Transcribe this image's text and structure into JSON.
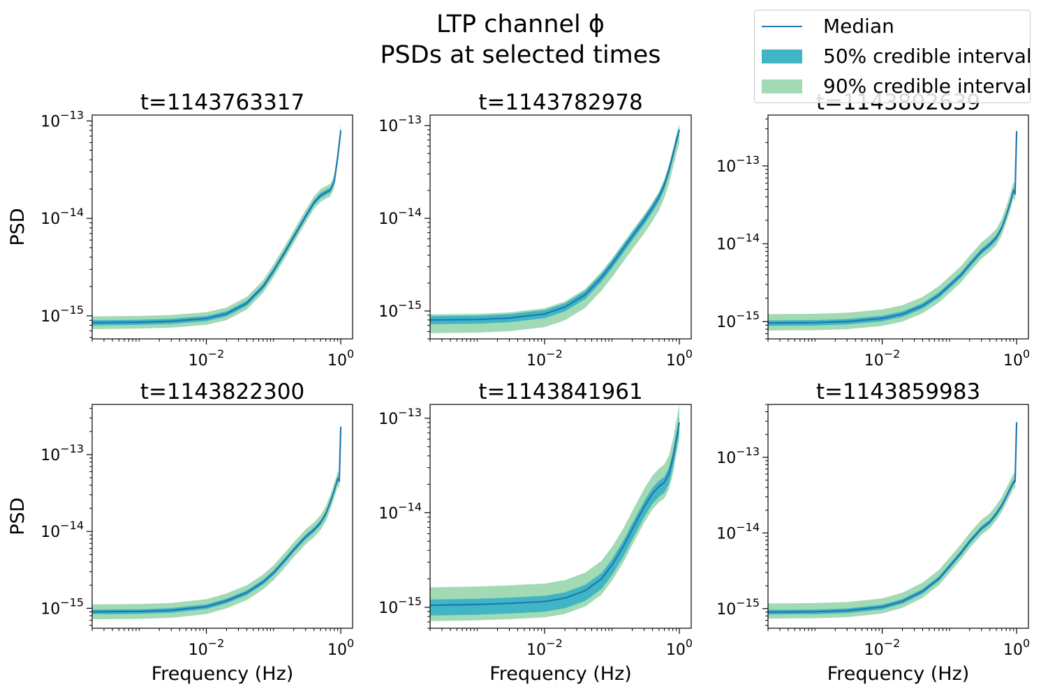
{
  "figure": {
    "title_line1": "LTP channel ϕ",
    "title_line2": "PSDs at selected times"
  },
  "legend": {
    "position": "upper-right",
    "items": [
      {
        "label": "Median",
        "kind": "line",
        "color": "#1f77b4"
      },
      {
        "label": "50% credible interval",
        "kind": "band",
        "color": "#40b5c4"
      },
      {
        "label": "90% credible interval",
        "kind": "band",
        "color": "#a1dab4"
      }
    ]
  },
  "colors": {
    "median": "#1f77b4",
    "ci50": "#40b5c4",
    "ci90": "#a1dab4",
    "axis": "#000000"
  },
  "chart_data": [
    {
      "type": "line",
      "title": "t=1143763317",
      "xlabel": "",
      "ylabel": "PSD",
      "xscale": "log",
      "yscale": "log",
      "xlim": [
        0.0002,
        1.5
      ],
      "ylim": [
        5.8e-16,
        1.15e-13
      ],
      "xticks": [
        {
          "value": 0.01,
          "label": "10^-2"
        },
        {
          "value": 1,
          "label": "10^0"
        }
      ],
      "yticks": [
        {
          "value": 1e-15,
          "label": "10^-15"
        },
        {
          "value": 1e-14,
          "label": "10^-14"
        },
        {
          "value": 1e-13,
          "label": "10^-13"
        }
      ],
      "x": [
        0.0002,
        0.001,
        0.003,
        0.01,
        0.02,
        0.04,
        0.07,
        0.1,
        0.15,
        0.2,
        0.3,
        0.4,
        0.5,
        0.6,
        0.7,
        0.8,
        0.9,
        1.0
      ],
      "series": [
        {
          "median": [
            8.5e-16,
            8.6e-16,
            8.8e-16,
            9.4e-16,
            1.05e-15,
            1.35e-15,
            2e-15,
            2.9e-15,
            4.6e-15,
            6.5e-15,
            1.05e-14,
            1.45e-14,
            1.72e-14,
            1.85e-14,
            1.95e-14,
            2.4e-14,
            4.2e-14,
            8e-14
          ],
          "ci50": [
            0.94,
            1.06
          ],
          "ci90": [
            0.86,
            1.16
          ]
        }
      ]
    },
    {
      "type": "line",
      "title": "t=1143782978",
      "xlabel": "",
      "ylabel": "",
      "xscale": "log",
      "yscale": "log",
      "xlim": [
        0.0002,
        1.5
      ],
      "ylim": [
        5e-16,
        1.3e-13
      ],
      "xticks": [
        {
          "value": 0.01,
          "label": "10^-2"
        },
        {
          "value": 1,
          "label": "10^0"
        }
      ],
      "yticks": [
        {
          "value": 1e-15,
          "label": "10^-15"
        },
        {
          "value": 1e-14,
          "label": "10^-14"
        },
        {
          "value": 1e-13,
          "label": "10^-13"
        }
      ],
      "x": [
        0.0002,
        0.001,
        0.003,
        0.01,
        0.02,
        0.04,
        0.07,
        0.1,
        0.15,
        0.2,
        0.3,
        0.4,
        0.5,
        0.6,
        0.7,
        0.8,
        0.9,
        1.0
      ],
      "series": [
        {
          "median": [
            8e-16,
            8.1e-16,
            8.4e-16,
            9.3e-16,
            1.1e-15,
            1.5e-15,
            2.3e-15,
            3.2e-15,
            4.8e-15,
            6.4e-15,
            9.5e-15,
            1.3e-14,
            1.7e-14,
            2.3e-14,
            3.3e-14,
            4.8e-14,
            6.8e-14,
            9e-14
          ],
          "ci50": [
            0.9,
            1.1
          ],
          "ci90": [
            0.72,
            1.15
          ]
        }
      ]
    },
    {
      "type": "line",
      "title": "t=1143802639",
      "xlabel": "",
      "ylabel": "",
      "xscale": "log",
      "yscale": "log",
      "xlim": [
        0.0002,
        1.5
      ],
      "ylim": [
        6e-16,
        4.5e-13
      ],
      "xticks": [
        {
          "value": 0.01,
          "label": "10^-2"
        },
        {
          "value": 1,
          "label": "10^0"
        }
      ],
      "yticks": [
        {
          "value": 1e-15,
          "label": "10^-15"
        },
        {
          "value": 1e-14,
          "label": "10^-14"
        },
        {
          "value": 1e-13,
          "label": "10^-13"
        }
      ],
      "x": [
        0.0002,
        0.001,
        0.003,
        0.01,
        0.02,
        0.04,
        0.07,
        0.1,
        0.15,
        0.2,
        0.3,
        0.4,
        0.5,
        0.6,
        0.7,
        0.8,
        0.9,
        0.95,
        1.0
      ],
      "series": [
        {
          "median": [
            9.6e-16,
            9.7e-16,
            1e-15,
            1.1e-15,
            1.25e-15,
            1.6e-15,
            2.2e-15,
            2.9e-15,
            4e-15,
            5.4e-15,
            8e-15,
            9.8e-15,
            1.2e-14,
            1.6e-14,
            2.3e-14,
            3.3e-14,
            4.8e-14,
            4.5e-14,
            2.8e-13
          ],
          "ci50": [
            0.92,
            1.08
          ],
          "ci90": [
            0.8,
            1.3
          ]
        }
      ]
    },
    {
      "type": "line",
      "title": "t=1143822300",
      "xlabel": "Frequency (Hz)",
      "ylabel": "PSD",
      "xscale": "log",
      "yscale": "log",
      "xlim": [
        0.0002,
        1.5
      ],
      "ylim": [
        5.5e-16,
        4.5e-13
      ],
      "xticks": [
        {
          "value": 0.01,
          "label": "10^-2"
        },
        {
          "value": 1,
          "label": "10^0"
        }
      ],
      "yticks": [
        {
          "value": 1e-15,
          "label": "10^-15"
        },
        {
          "value": 1e-14,
          "label": "10^-14"
        },
        {
          "value": 1e-13,
          "label": "10^-13"
        }
      ],
      "x": [
        0.0002,
        0.001,
        0.003,
        0.01,
        0.02,
        0.04,
        0.07,
        0.1,
        0.15,
        0.2,
        0.3,
        0.4,
        0.5,
        0.6,
        0.7,
        0.8,
        0.9,
        0.95,
        1.0
      ],
      "series": [
        {
          "median": [
            9e-16,
            9.1e-16,
            9.4e-16,
            1.05e-15,
            1.25e-15,
            1.6e-15,
            2.2e-15,
            2.9e-15,
            4.3e-15,
            5.8e-15,
            8.5e-15,
            1.05e-14,
            1.3e-14,
            1.7e-14,
            2.4e-14,
            3.4e-14,
            4.8e-14,
            4.6e-14,
            2.3e-13
          ],
          "ci50": [
            0.93,
            1.07
          ],
          "ci90": [
            0.8,
            1.25
          ]
        }
      ]
    },
    {
      "type": "line",
      "title": "t=1143841961",
      "xlabel": "Frequency (Hz)",
      "ylabel": "",
      "xscale": "log",
      "yscale": "log",
      "xlim": [
        0.0002,
        1.5
      ],
      "ylim": [
        6e-16,
        1.4e-13
      ],
      "xticks": [
        {
          "value": 0.01,
          "label": "10^-2"
        },
        {
          "value": 1,
          "label": "10^0"
        }
      ],
      "yticks": [
        {
          "value": 1e-15,
          "label": "10^-15"
        },
        {
          "value": 1e-14,
          "label": "10^-14"
        },
        {
          "value": 1e-13,
          "label": "10^-13"
        }
      ],
      "x": [
        0.0002,
        0.001,
        0.003,
        0.01,
        0.02,
        0.04,
        0.07,
        0.1,
        0.15,
        0.2,
        0.3,
        0.4,
        0.5,
        0.6,
        0.7,
        0.8,
        0.9,
        1.0
      ],
      "series": [
        {
          "median": [
            1.05e-15,
            1.07e-15,
            1.1e-15,
            1.15e-15,
            1.25e-15,
            1.5e-15,
            2e-15,
            2.8e-15,
            4.5e-15,
            6.7e-15,
            1.15e-14,
            1.6e-14,
            1.9e-14,
            2.1e-14,
            2.6e-14,
            3.8e-14,
            6e-14,
            9e-14
          ],
          "ci50": [
            0.78,
            1.15
          ],
          "ci90": [
            0.68,
            1.55
          ]
        }
      ]
    },
    {
      "type": "line",
      "title": "t=1143859983",
      "xlabel": "Frequency (Hz)",
      "ylabel": "",
      "xscale": "log",
      "yscale": "log",
      "xlim": [
        0.0002,
        1.5
      ],
      "ylim": [
        5.5e-16,
        5e-13
      ],
      "xticks": [
        {
          "value": 0.01,
          "label": "10^-2"
        },
        {
          "value": 1,
          "label": "10^0"
        }
      ],
      "yticks": [
        {
          "value": 1e-15,
          "label": "10^-15"
        },
        {
          "value": 1e-14,
          "label": "10^-14"
        },
        {
          "value": 1e-13,
          "label": "10^-13"
        }
      ],
      "x": [
        0.0002,
        0.001,
        0.003,
        0.01,
        0.02,
        0.04,
        0.07,
        0.1,
        0.15,
        0.2,
        0.3,
        0.4,
        0.5,
        0.6,
        0.7,
        0.8,
        0.9,
        0.95,
        1.0
      ],
      "series": [
        {
          "median": [
            9e-16,
            9.1e-16,
            9.4e-16,
            1.05e-15,
            1.25e-15,
            1.7e-15,
            2.5e-15,
            3.6e-15,
            5.5e-15,
            7.7e-15,
            1.15e-14,
            1.4e-14,
            1.8e-14,
            2.3e-14,
            3e-14,
            3.8e-14,
            4.7e-14,
            4.8e-14,
            2.9e-13
          ],
          "ci50": [
            0.93,
            1.07
          ],
          "ci90": [
            0.82,
            1.3
          ]
        }
      ]
    }
  ]
}
